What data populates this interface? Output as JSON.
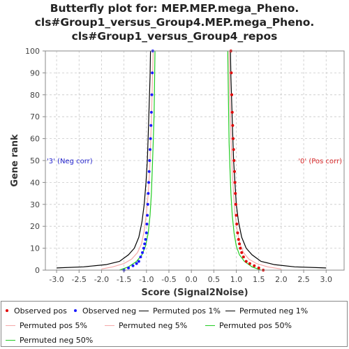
{
  "chart_data": {
    "type": "scatter",
    "title_lines": [
      "Butterfly plot for: MEP.MEP.mega_Pheno.",
      "cls#Group1_versus_Group4.MEP.mega_Pheno.",
      "cls#Group1_versus_Group4_repos"
    ],
    "xlabel": "Score (Signal2Noise)",
    "ylabel": "Gene rank",
    "xlim": [
      -3.25,
      3.4
    ],
    "ylim": [
      0,
      100
    ],
    "xticks": [
      "-3.0",
      "-2.5",
      "-2.0",
      "-1.5",
      "-1.0",
      "-0.5",
      "0.0",
      "0.5",
      "1.0",
      "1.5",
      "2.0",
      "2.5",
      "3.0"
    ],
    "xtick_values": [
      -3.0,
      -2.5,
      -2.0,
      -1.5,
      -1.0,
      -0.5,
      0.0,
      0.5,
      1.0,
      1.5,
      2.0,
      2.5,
      3.0
    ],
    "yticks": [
      "0",
      "10",
      "20",
      "30",
      "40",
      "50",
      "60",
      "70",
      "80",
      "90",
      "100"
    ],
    "ytick_values": [
      0,
      10,
      20,
      30,
      40,
      50,
      60,
      70,
      80,
      90,
      100
    ],
    "grid": true,
    "annotations": {
      "neg": {
        "text": "'3' (Neg corr)",
        "color": "#2222cc"
      },
      "pos": {
        "text": "'0' (Pos corr)",
        "color": "#d62728"
      }
    },
    "series": [
      {
        "name": "Observed pos",
        "kind": "points",
        "color": "#e00000",
        "x": [
          1.6,
          1.5,
          1.4,
          1.3,
          1.22,
          1.16,
          1.12,
          1.09,
          1.07,
          1.05,
          1.03,
          1.01,
          1.0,
          0.99,
          0.98,
          0.97,
          0.96,
          0.95,
          0.94,
          0.93,
          0.92,
          0.91,
          0.9,
          0.89,
          0.88
        ],
        "y": [
          0,
          1,
          2,
          3,
          4,
          6,
          8,
          10,
          12,
          14,
          17,
          21,
          25,
          30,
          35,
          40,
          45,
          50,
          55,
          60,
          66,
          72,
          80,
          90,
          100
        ]
      },
      {
        "name": "Observed neg",
        "kind": "points",
        "color": "#1a1aff",
        "x": [
          -1.5,
          -1.4,
          -1.3,
          -1.22,
          -1.17,
          -1.13,
          -1.09,
          -1.06,
          -1.04,
          -1.02,
          -1.0,
          -0.99,
          -0.98,
          -0.97,
          -0.96,
          -0.95,
          -0.94,
          -0.93,
          -0.92,
          -0.91,
          -0.9,
          -0.89,
          -0.88,
          -0.87,
          -0.86
        ],
        "y": [
          0,
          1,
          2,
          3,
          4,
          6,
          8,
          10,
          12,
          14,
          17,
          21,
          25,
          30,
          35,
          40,
          45,
          50,
          55,
          60,
          66,
          72,
          80,
          90,
          100
        ]
      },
      {
        "name": "Permuted pos 1%",
        "kind": "line",
        "color": "#000000",
        "x": [
          3.0,
          2.3,
          1.85,
          1.55,
          1.35,
          1.22,
          1.12,
          1.05,
          1.0,
          0.97,
          0.94,
          0.92,
          0.9,
          0.88,
          0.87
        ],
        "y": [
          1,
          1.5,
          2.5,
          4,
          7,
          10,
          15,
          22,
          30,
          40,
          50,
          62,
          75,
          88,
          100
        ]
      },
      {
        "name": "Permuted neg 1%",
        "kind": "line",
        "color": "#000000",
        "x": [
          -3.0,
          -2.4,
          -1.9,
          -1.6,
          -1.4,
          -1.27,
          -1.17,
          -1.1,
          -1.05,
          -1.01,
          -0.98,
          -0.96,
          -0.94,
          -0.92,
          -0.91
        ],
        "y": [
          1,
          1.5,
          2.5,
          4,
          7,
          10,
          15,
          22,
          30,
          40,
          50,
          62,
          75,
          88,
          100
        ]
      },
      {
        "name": "Permuted pos 5%",
        "kind": "line",
        "color": "#f4a8a8",
        "x": [
          2.0,
          1.7,
          1.45,
          1.28,
          1.16,
          1.08,
          1.02,
          0.97,
          0.94,
          0.91,
          0.89,
          0.87,
          0.85,
          0.84
        ],
        "y": [
          0.5,
          1.5,
          3,
          5,
          8,
          12,
          18,
          26,
          35,
          45,
          56,
          68,
          84,
          100
        ]
      },
      {
        "name": "Permuted neg 5%",
        "kind": "line",
        "color": "#f4a8a8",
        "x": [
          -2.0,
          -1.75,
          -1.5,
          -1.33,
          -1.2,
          -1.11,
          -1.05,
          -1.0,
          -0.96,
          -0.93,
          -0.91,
          -0.89,
          -0.87,
          -0.85
        ],
        "y": [
          0.5,
          1.5,
          3,
          5,
          8,
          12,
          18,
          26,
          35,
          45,
          56,
          68,
          84,
          100
        ]
      },
      {
        "name": "Permuted pos 50%",
        "kind": "line",
        "color": "#22cc22",
        "x": [
          1.55,
          1.35,
          1.18,
          1.07,
          1.0,
          0.95,
          0.91,
          0.88,
          0.86,
          0.84,
          0.83,
          0.82,
          0.81
        ],
        "y": [
          0,
          1.5,
          4,
          7,
          11,
          17,
          25,
          35,
          46,
          58,
          71,
          85,
          100
        ]
      },
      {
        "name": "Permuted neg 50%",
        "kind": "line",
        "color": "#22cc22",
        "x": [
          -1.6,
          -1.4,
          -1.22,
          -1.1,
          -1.02,
          -0.96,
          -0.92,
          -0.89,
          -0.87,
          -0.85,
          -0.83,
          -0.82,
          -0.81
        ],
        "y": [
          0,
          1.5,
          4,
          7,
          11,
          17,
          25,
          35,
          46,
          58,
          71,
          85,
          100
        ]
      }
    ]
  },
  "legend": [
    {
      "label": "Observed pos",
      "color": "#e00000",
      "kind": "dot"
    },
    {
      "label": "Observed neg",
      "color": "#1a1aff",
      "kind": "dot"
    },
    {
      "label": "Permuted pos 1%",
      "color": "#000000",
      "kind": "line"
    },
    {
      "label": "Permuted neg 1%",
      "color": "#000000",
      "kind": "line"
    },
    {
      "label": "Permuted pos 5%",
      "color": "#f4a8a8",
      "kind": "line"
    },
    {
      "label": "Permuted neg 5%",
      "color": "#f4a8a8",
      "kind": "line"
    },
    {
      "label": "Permuted pos 50%",
      "color": "#22cc22",
      "kind": "line"
    },
    {
      "label": "Permuted neg 50%",
      "color": "#22cc22",
      "kind": "line"
    }
  ]
}
